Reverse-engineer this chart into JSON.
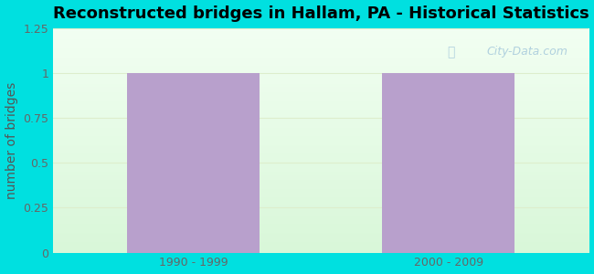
{
  "title": "Reconstructed bridges in Hallam, PA - Historical Statistics",
  "categories": [
    "1990 - 1999",
    "2000 - 2009"
  ],
  "values": [
    1,
    1
  ],
  "bar_color": "#b8a0cc",
  "ylabel": "number of bridges",
  "ylim": [
    0,
    1.25
  ],
  "yticks": [
    0,
    0.25,
    0.5,
    0.75,
    1,
    1.25
  ],
  "background_outer": "#00e0e0",
  "background_inner_top": "#f2faf2",
  "background_inner_bottom": "#e0f5e0",
  "grid_color": "#ddeecc",
  "title_fontsize": 13,
  "ylabel_fontsize": 10,
  "tick_fontsize": 9,
  "tick_color": "#666666",
  "ylabel_color": "#555555",
  "bar_width": 0.52,
  "watermark": "City-Data.com",
  "watermark_color": "#aaccdd",
  "xlim": [
    -0.55,
    1.55
  ]
}
